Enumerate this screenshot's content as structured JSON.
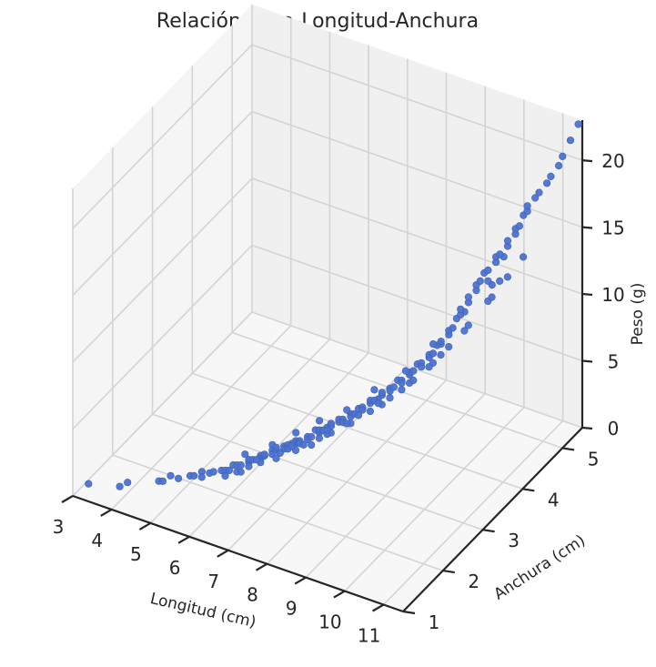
{
  "chart_data": {
    "type": "scatter3d",
    "title": "Relación Peso-Longitud-Anchura",
    "xlabel": "Longitud (cm)",
    "ylabel": "Anchura (cm)",
    "zlabel": "Peso (g)",
    "xlim": [
      3,
      11.5
    ],
    "ylim": [
      1,
      5.5
    ],
    "zlim": [
      0,
      23
    ],
    "x_ticks": [
      "3",
      "4",
      "5",
      "6",
      "7",
      "8",
      "9",
      "10",
      "11"
    ],
    "y_ticks": [
      "1",
      "2",
      "3",
      "4",
      "5"
    ],
    "z_ticks": [
      "0",
      "5",
      "10",
      "15",
      "20"
    ],
    "grid": true,
    "marker_color": "#4c72d0",
    "points": [
      [
        3.2,
        1.2,
        0.5
      ],
      [
        3.9,
        1.3,
        0.7
      ],
      [
        4.0,
        1.4,
        0.8
      ],
      [
        4.6,
        1.6,
        0.9
      ],
      [
        4.7,
        1.6,
        1.0
      ],
      [
        4.8,
        1.7,
        1.2
      ],
      [
        5.0,
        1.7,
        1.2
      ],
      [
        5.2,
        1.8,
        1.3
      ],
      [
        5.3,
        1.8,
        1.4
      ],
      [
        5.4,
        1.9,
        1.5
      ],
      [
        5.6,
        1.9,
        1.6
      ],
      [
        5.8,
        2.0,
        1.7
      ],
      [
        5.9,
        2.0,
        1.8
      ],
      [
        6.0,
        2.0,
        1.9
      ],
      [
        6.0,
        2.1,
        2.0
      ],
      [
        6.1,
        2.1,
        2.1
      ],
      [
        6.2,
        2.1,
        2.2
      ],
      [
        6.3,
        2.2,
        2.2
      ],
      [
        6.3,
        2.2,
        2.4
      ],
      [
        6.4,
        2.2,
        2.5
      ],
      [
        6.5,
        2.3,
        2.6
      ],
      [
        6.5,
        2.3,
        2.4
      ],
      [
        6.6,
        2.3,
        2.7
      ],
      [
        6.6,
        2.3,
        2.8
      ],
      [
        6.7,
        2.4,
        2.9
      ],
      [
        6.7,
        2.4,
        2.6
      ],
      [
        6.8,
        2.4,
        3.0
      ],
      [
        6.8,
        2.4,
        3.2
      ],
      [
        6.9,
        2.5,
        3.1
      ],
      [
        6.9,
        2.5,
        2.9
      ],
      [
        7.0,
        2.5,
        3.3
      ],
      [
        7.0,
        2.5,
        3.0
      ],
      [
        7.1,
        2.6,
        3.4
      ],
      [
        7.1,
        2.6,
        3.2
      ],
      [
        7.2,
        2.6,
        3.5
      ],
      [
        7.2,
        2.6,
        3.3
      ],
      [
        7.3,
        2.7,
        3.6
      ],
      [
        7.3,
        2.7,
        3.4
      ],
      [
        7.4,
        2.7,
        3.7
      ],
      [
        7.4,
        2.8,
        3.9
      ],
      [
        7.5,
        2.8,
        3.8
      ],
      [
        7.5,
        2.8,
        4.0
      ],
      [
        7.6,
        2.8,
        4.1
      ],
      [
        7.6,
        2.9,
        4.0
      ],
      [
        7.7,
        2.9,
        4.2
      ],
      [
        7.7,
        2.9,
        4.4
      ],
      [
        7.8,
        3.0,
        4.3
      ],
      [
        7.8,
        3.0,
        4.5
      ],
      [
        7.9,
        3.0,
        4.6
      ],
      [
        7.9,
        3.0,
        4.4
      ],
      [
        8.0,
        3.1,
        4.8
      ],
      [
        8.0,
        3.1,
        4.6
      ],
      [
        8.1,
        3.1,
        4.9
      ],
      [
        8.1,
        3.2,
        5.0
      ],
      [
        8.2,
        3.2,
        5.2
      ],
      [
        8.2,
        3.2,
        5.0
      ],
      [
        8.3,
        3.3,
        5.3
      ],
      [
        8.3,
        3.3,
        5.5
      ],
      [
        8.4,
        3.3,
        5.6
      ],
      [
        8.4,
        3.4,
        5.4
      ],
      [
        8.5,
        3.4,
        5.8
      ],
      [
        8.5,
        3.4,
        6.0
      ],
      [
        8.6,
        3.5,
        6.1
      ],
      [
        8.6,
        3.5,
        5.9
      ],
      [
        8.7,
        3.5,
        6.3
      ],
      [
        8.7,
        3.6,
        6.5
      ],
      [
        8.8,
        3.6,
        6.6
      ],
      [
        8.8,
        3.6,
        6.4
      ],
      [
        8.9,
        3.7,
        6.8
      ],
      [
        8.9,
        3.7,
        7.0
      ],
      [
        9.0,
        3.7,
        7.2
      ],
      [
        9.0,
        3.8,
        7.4
      ],
      [
        9.1,
        3.8,
        7.6
      ],
      [
        9.1,
        3.8,
        7.3
      ],
      [
        9.2,
        3.9,
        7.8
      ],
      [
        9.2,
        3.9,
        8.0
      ],
      [
        9.3,
        3.9,
        8.2
      ],
      [
        9.3,
        4.0,
        8.5
      ],
      [
        9.4,
        4.0,
        8.7
      ],
      [
        9.4,
        4.0,
        8.9
      ],
      [
        9.5,
        4.1,
        9.2
      ],
      [
        9.5,
        4.1,
        9.5
      ],
      [
        9.6,
        4.1,
        9.8
      ],
      [
        9.6,
        4.2,
        10.2
      ],
      [
        9.7,
        4.2,
        10.6
      ],
      [
        9.7,
        4.2,
        11.0
      ],
      [
        9.8,
        4.3,
        11.3
      ],
      [
        9.8,
        4.3,
        11.7
      ],
      [
        9.9,
        4.4,
        12.0
      ],
      [
        9.9,
        4.4,
        12.4
      ],
      [
        10.0,
        4.4,
        12.8
      ],
      [
        10.0,
        4.5,
        13.1
      ],
      [
        10.1,
        4.5,
        13.4
      ],
      [
        10.1,
        4.5,
        12.6
      ],
      [
        10.2,
        4.6,
        13.8
      ],
      [
        10.2,
        4.6,
        14.2
      ],
      [
        10.3,
        4.6,
        14.5
      ],
      [
        10.3,
        4.7,
        14.0
      ],
      [
        10.4,
        4.7,
        14.9
      ],
      [
        10.4,
        4.7,
        15.3
      ],
      [
        10.5,
        4.8,
        15.6
      ],
      [
        10.5,
        4.8,
        16.0
      ],
      [
        10.6,
        4.8,
        16.3
      ],
      [
        10.6,
        4.9,
        16.8
      ],
      [
        10.7,
        4.9,
        17.2
      ],
      [
        10.7,
        4.9,
        17.6
      ],
      [
        10.8,
        5.0,
        18.0
      ],
      [
        10.9,
        5.0,
        18.5
      ],
      [
        11.0,
        5.1,
        19.0
      ],
      [
        11.1,
        5.1,
        19.6
      ],
      [
        11.2,
        5.2,
        20.2
      ],
      [
        11.3,
        5.2,
        21.0
      ],
      [
        11.4,
        5.3,
        22.0
      ],
      [
        11.5,
        5.4,
        23.0
      ],
      [
        6.2,
        2.0,
        2.0
      ],
      [
        6.4,
        2.1,
        2.3
      ],
      [
        6.9,
        2.3,
        2.8
      ],
      [
        7.2,
        2.5,
        3.1
      ],
      [
        7.5,
        2.6,
        3.5
      ],
      [
        7.8,
        2.8,
        4.1
      ],
      [
        8.1,
        3.0,
        4.5
      ],
      [
        8.4,
        3.2,
        5.1
      ],
      [
        8.7,
        3.4,
        5.8
      ],
      [
        9.0,
        3.6,
        6.6
      ],
      [
        9.3,
        3.8,
        7.5
      ],
      [
        9.6,
        4.0,
        8.7
      ],
      [
        9.9,
        4.2,
        10.0
      ],
      [
        10.2,
        4.4,
        11.5
      ],
      [
        10.5,
        4.6,
        13.0
      ],
      [
        6.1,
        2.3,
        2.3
      ],
      [
        6.6,
        2.5,
        2.9
      ],
      [
        7.0,
        2.7,
        3.6
      ],
      [
        7.4,
        2.9,
        4.3
      ],
      [
        7.9,
        3.1,
        5.0
      ],
      [
        8.3,
        3.4,
        6.0
      ],
      [
        8.8,
        3.7,
        7.0
      ],
      [
        9.2,
        4.0,
        8.5
      ],
      [
        9.7,
        4.3,
        10.5
      ],
      [
        10.1,
        4.6,
        12.0
      ],
      [
        5.5,
        1.8,
        1.5
      ],
      [
        5.7,
        1.9,
        1.8
      ],
      [
        6.0,
        1.9,
        1.8
      ],
      [
        6.3,
        2.0,
        2.1
      ],
      [
        6.6,
        2.2,
        2.5
      ],
      [
        6.9,
        2.4,
        2.9
      ],
      [
        7.3,
        2.6,
        3.3
      ],
      [
        7.7,
        2.8,
        3.9
      ],
      [
        8.0,
        3.0,
        4.4
      ],
      [
        8.6,
        3.3,
        5.5
      ],
      [
        9.1,
        3.6,
        6.9
      ],
      [
        9.5,
        3.9,
        8.3
      ],
      [
        9.9,
        4.1,
        9.9
      ],
      [
        10.3,
        4.4,
        11.9
      ],
      [
        10.8,
        4.7,
        14.5
      ],
      [
        6.5,
        2.2,
        2.6
      ],
      [
        7.1,
        2.5,
        3.3
      ],
      [
        7.6,
        2.7,
        3.8
      ],
      [
        8.2,
        3.1,
        4.9
      ],
      [
        8.9,
        3.5,
        6.3
      ],
      [
        7.0,
        2.6,
        3.1
      ],
      [
        7.7,
        2.8,
        4.2
      ],
      [
        8.5,
        3.3,
        5.5
      ],
      [
        9.4,
        3.8,
        7.9
      ],
      [
        10.4,
        4.5,
        12.9
      ]
    ]
  }
}
